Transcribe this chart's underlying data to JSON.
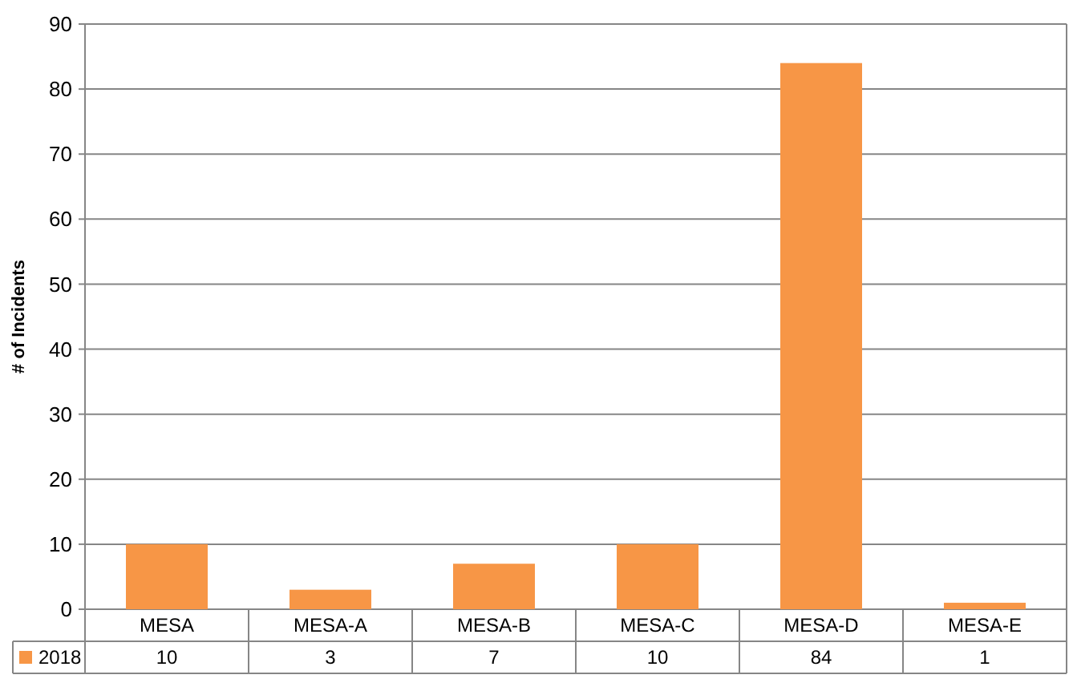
{
  "chart_data": {
    "type": "bar",
    "ylabel": "# of Incidents",
    "categories": [
      "MESA",
      "MESA-A",
      "MESA-B",
      "MESA-C",
      "MESA-D",
      "MESA-E"
    ],
    "series": [
      {
        "name": "2018",
        "color": "#f79646",
        "values": [
          10,
          3,
          7,
          10,
          84,
          1
        ]
      }
    ],
    "ylim": [
      0,
      90
    ],
    "yticks": [
      0,
      10,
      20,
      30,
      40,
      50,
      60,
      70,
      80,
      90
    ],
    "grid": "y",
    "legend": "bottom",
    "data_labels": true
  }
}
